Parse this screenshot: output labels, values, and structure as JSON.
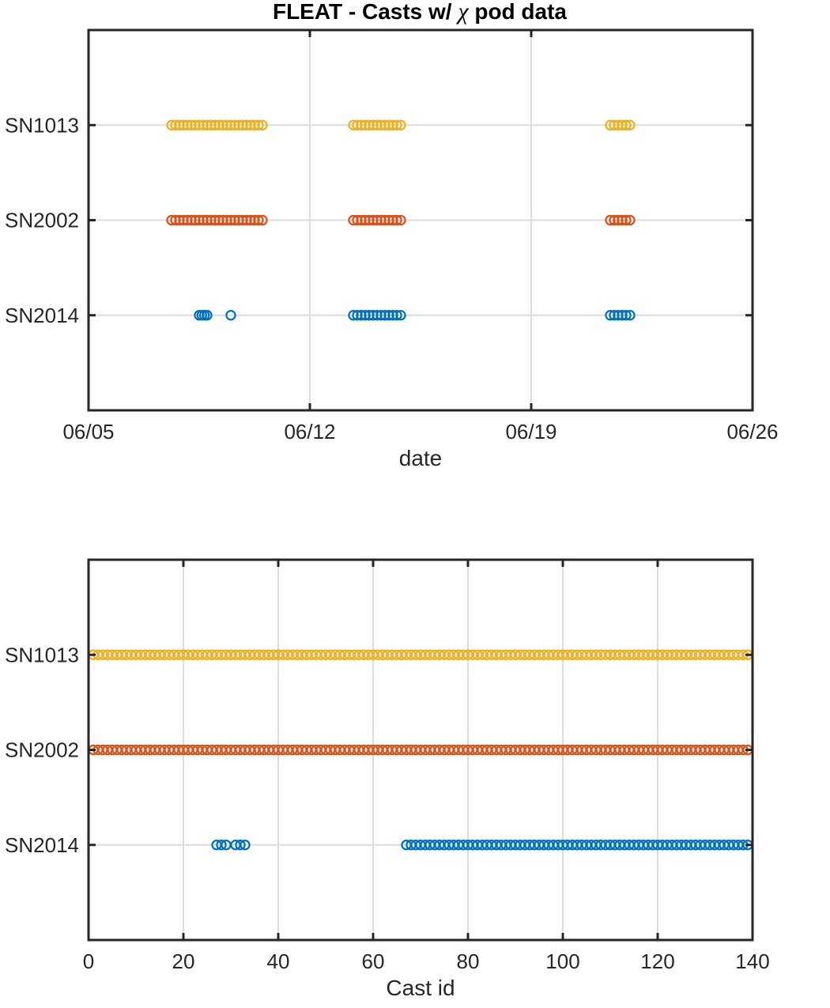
{
  "chart_data": [
    {
      "type": "scatter",
      "title_parts": [
        "FLEAT - Casts w/ ",
        "χ",
        " pod data"
      ],
      "xlabel": "date",
      "ylabel": "",
      "xlim": [
        "2015-06-05",
        "2015-06-26"
      ],
      "x_tick_values": [
        "2015-06-05",
        "2015-06-12",
        "2015-06-19",
        "2015-06-26"
      ],
      "x_tick_labels": [
        "06/05",
        "06/12",
        "06/19",
        "06/26"
      ],
      "ylim": [
        0,
        4
      ],
      "y_tick_values": [
        1,
        2,
        3
      ],
      "y_tick_labels": [
        "SN2014",
        "SN2002",
        "SN1013"
      ],
      "grid": true,
      "series": [
        {
          "name": "SN1013",
          "y": 3,
          "color": "#EDB120",
          "x": [
            "2015-06-07T15:00",
            "2015-06-07T18:00",
            "2015-06-07T21:00",
            "2015-06-08T00:00",
            "2015-06-08T03:00",
            "2015-06-08T06:00",
            "2015-06-08T09:00",
            "2015-06-08T12:00",
            "2015-06-08T15:00",
            "2015-06-08T18:00",
            "2015-06-08T21:00",
            "2015-06-09T00:00",
            "2015-06-09T03:00",
            "2015-06-09T06:00",
            "2015-06-09T09:00",
            "2015-06-09T12:00",
            "2015-06-09T15:00",
            "2015-06-09T18:00",
            "2015-06-09T21:00",
            "2015-06-10T00:00",
            "2015-06-10T03:00",
            "2015-06-10T06:00",
            "2015-06-10T09:00",
            "2015-06-10T12:00",
            "2015-06-13T09:00",
            "2015-06-13T12:00",
            "2015-06-13T15:00",
            "2015-06-13T18:00",
            "2015-06-13T21:00",
            "2015-06-14T00:00",
            "2015-06-14T03:00",
            "2015-06-14T06:00",
            "2015-06-14T09:00",
            "2015-06-14T12:00",
            "2015-06-14T15:00",
            "2015-06-14T18:00",
            "2015-06-14T21:00",
            "2015-06-21T12:00",
            "2015-06-21T15:00",
            "2015-06-21T18:00",
            "2015-06-21T21:00",
            "2015-06-22T00:00",
            "2015-06-22T03:00"
          ]
        },
        {
          "name": "SN2002",
          "y": 2,
          "color": "#D95319",
          "x": [
            "2015-06-07T15:00",
            "2015-06-07T18:00",
            "2015-06-07T21:00",
            "2015-06-08T00:00",
            "2015-06-08T03:00",
            "2015-06-08T06:00",
            "2015-06-08T09:00",
            "2015-06-08T12:00",
            "2015-06-08T15:00",
            "2015-06-08T18:00",
            "2015-06-08T21:00",
            "2015-06-09T00:00",
            "2015-06-09T03:00",
            "2015-06-09T06:00",
            "2015-06-09T09:00",
            "2015-06-09T12:00",
            "2015-06-09T15:00",
            "2015-06-09T18:00",
            "2015-06-09T21:00",
            "2015-06-10T00:00",
            "2015-06-10T03:00",
            "2015-06-10T06:00",
            "2015-06-10T09:00",
            "2015-06-10T12:00",
            "2015-06-13T09:00",
            "2015-06-13T12:00",
            "2015-06-13T15:00",
            "2015-06-13T18:00",
            "2015-06-13T21:00",
            "2015-06-14T00:00",
            "2015-06-14T03:00",
            "2015-06-14T06:00",
            "2015-06-14T09:00",
            "2015-06-14T12:00",
            "2015-06-14T15:00",
            "2015-06-14T18:00",
            "2015-06-14T21:00",
            "2015-06-21T12:00",
            "2015-06-21T15:00",
            "2015-06-21T18:00",
            "2015-06-21T21:00",
            "2015-06-22T00:00",
            "2015-06-22T03:00"
          ]
        },
        {
          "name": "SN2014",
          "y": 1,
          "color": "#0072BD",
          "x": [
            "2015-06-08T12:00",
            "2015-06-08T14:00",
            "2015-06-08T16:00",
            "2015-06-08T18:00",
            "2015-06-09T12:00",
            "2015-06-13T09:00",
            "2015-06-13T12:00",
            "2015-06-13T15:00",
            "2015-06-13T18:00",
            "2015-06-13T21:00",
            "2015-06-14T00:00",
            "2015-06-14T03:00",
            "2015-06-14T06:00",
            "2015-06-14T09:00",
            "2015-06-14T12:00",
            "2015-06-14T15:00",
            "2015-06-14T18:00",
            "2015-06-14T21:00",
            "2015-06-21T12:00",
            "2015-06-21T15:00",
            "2015-06-21T18:00",
            "2015-06-21T21:00",
            "2015-06-22T00:00",
            "2015-06-22T03:00"
          ]
        }
      ]
    },
    {
      "type": "scatter",
      "xlabel": "Cast id",
      "ylabel": "",
      "xlim": [
        0,
        140
      ],
      "x_tick_values": [
        0,
        20,
        40,
        60,
        80,
        100,
        120,
        140
      ],
      "ylim": [
        0,
        4
      ],
      "y_tick_values": [
        1,
        2,
        3
      ],
      "y_tick_labels": [
        "SN2014",
        "SN2002",
        "SN1013"
      ],
      "grid": true,
      "series": [
        {
          "name": "SN1013",
          "y": 3,
          "color": "#EDB120",
          "x_ranges": [
            [
              1,
              139
            ]
          ]
        },
        {
          "name": "SN2002",
          "y": 2,
          "color": "#D95319",
          "x_ranges": [
            [
              1,
              139
            ]
          ]
        },
        {
          "name": "SN2014",
          "y": 1,
          "color": "#0072BD",
          "x_ranges": [
            [
              27,
              29
            ],
            [
              31,
              33
            ],
            [
              67,
              139
            ]
          ]
        }
      ]
    }
  ]
}
